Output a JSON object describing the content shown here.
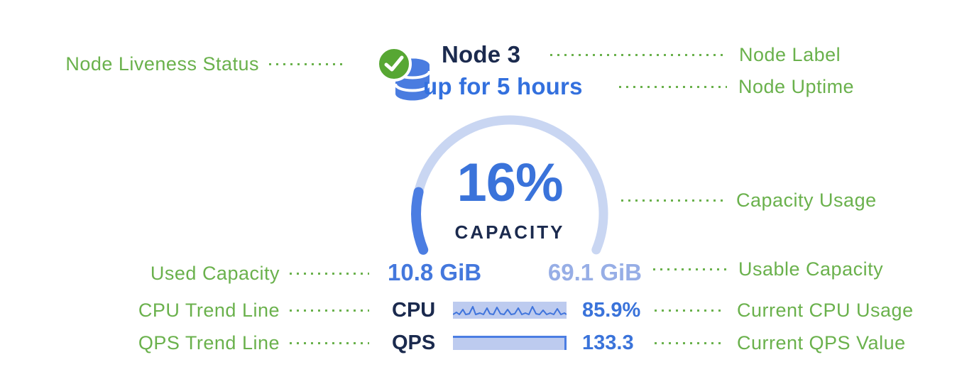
{
  "colors": {
    "annotation_green": "#6ab14c",
    "status_green": "#57a733",
    "primary_blue": "#3a73da",
    "dark_navy": "#1b2a4e",
    "light_blue_text": "#97aee6",
    "arc_background": "#c9d6f2",
    "arc_fill": "#4b7de2",
    "sparkline_background": "#bdcbef",
    "sparkline_line": "#3f74dc",
    "database_icon_blue": "#4a7ce0"
  },
  "annotations": {
    "left": [
      {
        "label": "Node Liveness Status"
      },
      {
        "label": "Used Capacity"
      },
      {
        "label": "CPU Trend Line"
      },
      {
        "label": "QPS Trend Line"
      }
    ],
    "right": [
      {
        "label": "Node Label"
      },
      {
        "label": "Node Uptime"
      },
      {
        "label": "Capacity Usage"
      },
      {
        "label": "Usable Capacity"
      },
      {
        "label": "Current CPU Usage"
      },
      {
        "label": "Current QPS Value"
      }
    ]
  },
  "node": {
    "name": "Node 3",
    "uptime": "up for 5 hours",
    "capacity_percent": "16%",
    "capacity_caption": "CAPACITY",
    "used_capacity": "10.8 GiB",
    "usable_capacity": "69.1 GiB",
    "cpu_label": "CPU",
    "cpu_value": "85.9%",
    "qps_label": "QPS",
    "qps_value": "133.3",
    "status_icon": "check-circle",
    "node_icon": "database"
  },
  "chart_data": [
    {
      "type": "gauge",
      "title": "CAPACITY",
      "value_percent": 16,
      "used": "10.8 GiB",
      "usable": "69.1 GiB",
      "arc_sweep_degrees": 225.4,
      "arc_start_degrees": 157.3
    },
    {
      "type": "line",
      "name": "CPU sparkline",
      "current": "85.9%",
      "points": [
        [
          0,
          18
        ],
        [
          5,
          15
        ],
        [
          9,
          18
        ],
        [
          14,
          11
        ],
        [
          18,
          18
        ],
        [
          23,
          17
        ],
        [
          28,
          7
        ],
        [
          32,
          18
        ],
        [
          38,
          16
        ],
        [
          43,
          18
        ],
        [
          48,
          9
        ],
        [
          52,
          17
        ],
        [
          57,
          18
        ],
        [
          62,
          8
        ],
        [
          67,
          17
        ],
        [
          72,
          18
        ],
        [
          77,
          11
        ],
        [
          82,
          18
        ],
        [
          87,
          17
        ],
        [
          92,
          9
        ],
        [
          97,
          18
        ],
        [
          102,
          16
        ],
        [
          107,
          18
        ],
        [
          112,
          7
        ],
        [
          117,
          17
        ],
        [
          122,
          18
        ],
        [
          127,
          12
        ],
        [
          132,
          18
        ],
        [
          137,
          16
        ],
        [
          142,
          18
        ],
        [
          147,
          10
        ],
        [
          152,
          18
        ],
        [
          157,
          16
        ],
        [
          160,
          18
        ]
      ]
    },
    {
      "type": "area",
      "name": "QPS bar",
      "current": 133.3,
      "fill_fraction": 1.0
    }
  ]
}
